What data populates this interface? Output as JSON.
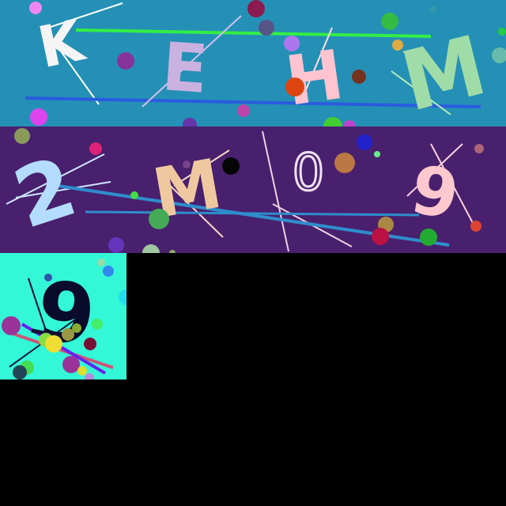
{
  "captcha_tiles": [
    {
      "background": "#2590b5",
      "characters": [
        "K",
        "E",
        "H",
        "M"
      ],
      "colors": [
        "#f5f5f5",
        "#c9b2e0",
        "#ffc4d0",
        "#a0dca8"
      ]
    },
    {
      "background": "#48206e",
      "characters": [
        "2",
        "M",
        "0",
        "9"
      ],
      "colors": [
        "#b4dcff",
        "#f0c8a0",
        "#f0e0f0",
        "#ffc8cf"
      ]
    },
    {
      "background": "#33f7d6",
      "characters": [
        "9"
      ],
      "colors": [
        "#0a0a2a"
      ]
    }
  ],
  "empty_area_color": "#000000"
}
